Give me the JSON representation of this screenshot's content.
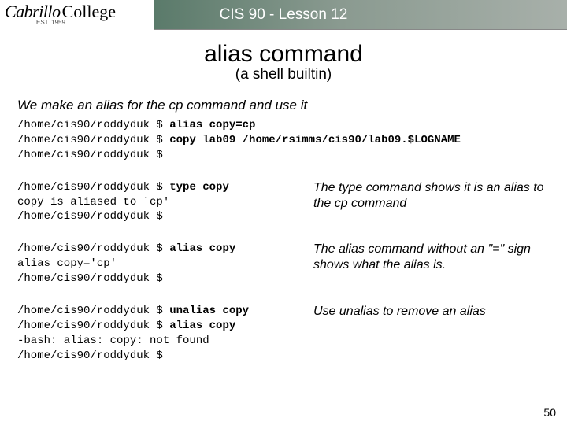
{
  "header": {
    "logo_script": "Cabrillo",
    "logo_serif": "College",
    "est": "EST. 1959",
    "title": "CIS 90 - Lesson 12"
  },
  "title": "alias command",
  "subtitle": "(a shell builtin)",
  "intro": "We make an alias for the cp command and use it",
  "prompt": "/home/cis90/roddyduk $ ",
  "block1": {
    "cmd1": "alias copy=cp",
    "cmd2": "copy lab09 /home/rsimms/cis90/lab09.$LOGNAME"
  },
  "block2": {
    "cmd": "type copy",
    "out": "copy is aliased to `cp'",
    "note": "The type command shows it is an alias to the cp command"
  },
  "block3": {
    "cmd": "alias copy",
    "out": "alias copy='cp'",
    "note": "The alias command without an \"=\" sign shows what the alias is."
  },
  "block4": {
    "cmd1": "unalias copy",
    "cmd2": "alias copy",
    "out": "-bash: alias: copy: not found",
    "note": "Use unalias to remove an alias"
  },
  "page_number": "50"
}
